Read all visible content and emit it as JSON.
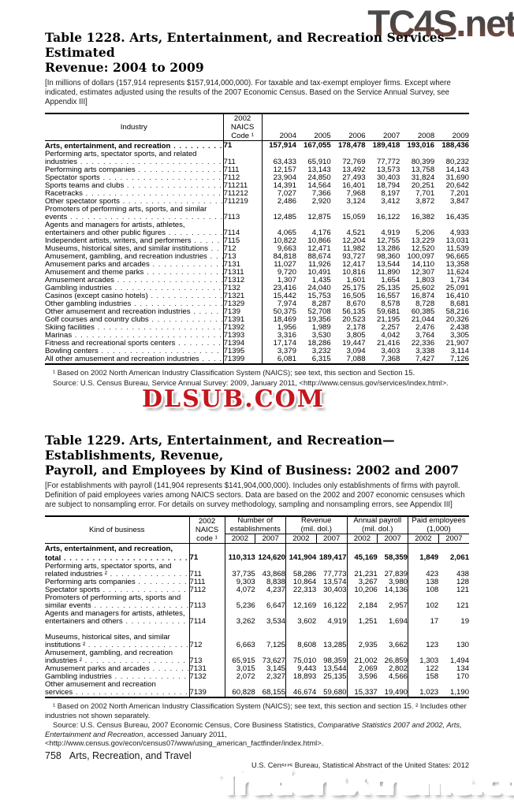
{
  "watermarks": {
    "top_right": "TC4S.net",
    "middle": "DLSUB.COM",
    "bottom": "TradersXtreme.com"
  },
  "table1228": {
    "title_lines": [
      "Table 1228. Arts, Entertainment, and Recreation Services—Estimated",
      "Revenue: 2004 to 2009"
    ],
    "note": "[In millions of dollars (157,914 represents $157,914,000,000). For taxable and tax-exempt employer firms. Except where indicated, estimates adjusted using the results of the 2007 Economic Census. Based on the Service Annual Survey, see Appendix III]",
    "header": {
      "industry": "Industry",
      "naics_lines": [
        "2002",
        "NAICS",
        "Code ¹"
      ],
      "years": [
        "2004",
        "2005",
        "2006",
        "2007",
        "2008",
        "2009"
      ]
    },
    "rows": [
      {
        "t": "Arts, entertainment, and recreation",
        "lv": 1,
        "b": true,
        "n": "71",
        "v": [
          "157,914",
          "167,055",
          "178,478",
          "189,418",
          "193,016",
          "188,436"
        ]
      },
      {
        "t": "Performing arts, spectator sports, and related",
        "lv": 0
      },
      {
        "t": "industries",
        "lv": 1,
        "n": "711",
        "v": [
          "63,433",
          "65,910",
          "72,769",
          "77,772",
          "80,399",
          "80,232"
        ]
      },
      {
        "t": "Performing arts companies",
        "lv": 1,
        "n": "7111",
        "v": [
          "12,157",
          "13,143",
          "13,492",
          "13,573",
          "13,758",
          "14,143"
        ]
      },
      {
        "t": "Spectator sports",
        "lv": 1,
        "n": "7112",
        "v": [
          "23,904",
          "24,850",
          "27,493",
          "30,403",
          "31,824",
          "31,690"
        ]
      },
      {
        "t": "Sports teams and clubs",
        "lv": 2,
        "n": "711211",
        "v": [
          "14,391",
          "14,564",
          "16,401",
          "18,794",
          "20,251",
          "20,642"
        ]
      },
      {
        "t": "Racetracks",
        "lv": 2,
        "n": "711212",
        "v": [
          "7,027",
          "7,366",
          "7,968",
          "8,197",
          "7,701",
          "7,201"
        ]
      },
      {
        "t": "Other spectator sports",
        "lv": 2,
        "n": "711219",
        "v": [
          "2,486",
          "2,920",
          "3,124",
          "3,412",
          "3,872",
          "3,847"
        ]
      },
      {
        "t": "Promoters of performing arts, sports, and similar",
        "lv": 1
      },
      {
        "t": "events",
        "lv": 2,
        "n": "7113",
        "v": [
          "12,485",
          "12,875",
          "15,059",
          "16,122",
          "16,382",
          "16,435"
        ]
      },
      {
        "t": "Agents and managers for artists, athletes,",
        "lv": 1
      },
      {
        "t": "entertainers and other public figures",
        "lv": 2,
        "n": "7114",
        "v": [
          "4,065",
          "4,176",
          "4,521",
          "4,919",
          "5,206",
          "4,933"
        ]
      },
      {
        "t": "Independent artists, writers, and performers",
        "lv": 1,
        "n": "7115",
        "v": [
          "10,822",
          "10,866",
          "12,204",
          "12,755",
          "13,229",
          "13,031"
        ]
      },
      {
        "t": "Museums, historical sites, and similar institutions",
        "lv": 0,
        "n": "712",
        "v": [
          "9,663",
          "12,471",
          "11,982",
          "13,286",
          "12,520",
          "11,539"
        ]
      },
      {
        "t": "Amusement, gambling, and recreation industries",
        "lv": 0,
        "n": "713",
        "v": [
          "84,818",
          "88,674",
          "93,727",
          "98,360",
          "100,097",
          "96,665"
        ]
      },
      {
        "t": "Amusement parks and arcades",
        "lv": 1,
        "n": "7131",
        "v": [
          "11,027",
          "11,926",
          "12,417",
          "13,544",
          "14,110",
          "13,358"
        ]
      },
      {
        "t": "Amusement and theme parks",
        "lv": 2,
        "n": "71311",
        "v": [
          "9,720",
          "10,491",
          "10,816",
          "11,890",
          "12,307",
          "11,624"
        ]
      },
      {
        "t": "Amusement arcades",
        "lv": 2,
        "n": "71312",
        "v": [
          "1,307",
          "1,435",
          "1,601",
          "1,654",
          "1,803",
          "1,734"
        ]
      },
      {
        "t": "Gambling industries",
        "lv": 1,
        "n": "7132",
        "v": [
          "23,416",
          "24,040",
          "25,175",
          "25,135",
          "25,602",
          "25,091"
        ]
      },
      {
        "t": "Casinos (except casino hotels)",
        "lv": 2,
        "n": "71321",
        "v": [
          "15,442",
          "15,753",
          "16,505",
          "16,557",
          "16,874",
          "16,410"
        ]
      },
      {
        "t": "Other gambling industries",
        "lv": 2,
        "n": "71329",
        "v": [
          "7,974",
          "8,287",
          "8,670",
          "8,578",
          "8,728",
          "8,681"
        ]
      },
      {
        "t": "Other amusement and recreation industries",
        "lv": 1,
        "n": "7139",
        "v": [
          "50,375",
          "52,708",
          "56,135",
          "59,681",
          "60,385",
          "58,216"
        ]
      },
      {
        "t": "Golf courses and country clubs",
        "lv": 2,
        "n": "71391",
        "v": [
          "18,469",
          "19,356",
          "20,523",
          "21,195",
          "21,044",
          "20,326"
        ]
      },
      {
        "t": "Skiing facilities",
        "lv": 2,
        "n": "71392",
        "v": [
          "1,956",
          "1,989",
          "2,178",
          "2,257",
          "2,476",
          "2,438"
        ]
      },
      {
        "t": "Marinas",
        "lv": 2,
        "n": "71393",
        "v": [
          "3,316",
          "3,530",
          "3,805",
          "4,042",
          "3,764",
          "3,305"
        ]
      },
      {
        "t": "Fitness and recreational sports centers",
        "lv": 2,
        "n": "71394",
        "v": [
          "17,174",
          "18,286",
          "19,447",
          "21,416",
          "22,336",
          "21,907"
        ]
      },
      {
        "t": "Bowling centers",
        "lv": 2,
        "n": "71395",
        "v": [
          "3,379",
          "3,232",
          "3,094",
          "3,403",
          "3,338",
          "3,114"
        ]
      },
      {
        "t": "All other amusement and recreation industries",
        "lv": 2,
        "n": "71399",
        "v": [
          "6,081",
          "6,315",
          "7,088",
          "7,368",
          "7,427",
          "7,126"
        ]
      }
    ],
    "footnote": "¹ Based on 2002 North American Industry Classification System (NAICS); see text, this section and Section 15.",
    "source": "Source: U.S. Census Bureau, Service Annual Survey: 2009, January 2011, <http://www.census.gov/services/index.html>."
  },
  "table1229": {
    "title_lines": [
      "Table 1229. Arts, Entertainment, and Recreation—Establishments, Revenue,",
      "Payroll, and Employees by Kind of Business: 2002 and 2007"
    ],
    "note": "[For establishments with payroll (141,904 represents $141,904,000,000). Includes only establishments of firms with payroll. Definition of paid employees varies among NAICS sectors. Data are based on the 2002 and 2007 economic censuses which are subject to nonsampling error. For details on survey methodology, sampling and nonsampling errors, see Appendix III]",
    "header": {
      "kind": "Kind of business",
      "naics_lines": [
        "2002",
        "NAICS",
        "code ¹"
      ],
      "groups": [
        [
          "Number of",
          "establishments"
        ],
        [
          "Revenue",
          "(mil. dol.)"
        ],
        [
          "Annual payroll",
          "(mil. dol.)"
        ],
        [
          "Paid employees",
          "(1,000)"
        ]
      ],
      "subyears": [
        "2002",
        "2007",
        "2002",
        "2007",
        "2002",
        "2007",
        "2002",
        "2007"
      ]
    },
    "rows": [
      {
        "t": "Arts, entertainment, and recreation,",
        "lv": 1,
        "b": true
      },
      {
        "t": "total",
        "lv": 2,
        "b": true,
        "n": "71",
        "v": [
          "110,313",
          "124,620",
          "141,904",
          "189,417",
          "45,169",
          "58,359",
          "1,849",
          "2,061"
        ]
      },
      {
        "t": "Performing arts, spectator sports, and",
        "lv": 0
      },
      {
        "t": "related industries ²",
        "lv": 1,
        "n": "711",
        "v": [
          "37,735",
          "43,868",
          "58,286",
          "77,773",
          "21,231",
          "27,839",
          "423",
          "438"
        ]
      },
      {
        "t": "Performing arts companies",
        "lv": 1,
        "n": "7111",
        "v": [
          "9,303",
          "8,838",
          "10,864",
          "13,574",
          "3,267",
          "3,980",
          "138",
          "128"
        ]
      },
      {
        "t": "Spectator sports",
        "lv": 1,
        "n": "7112",
        "v": [
          "4,072",
          "4,237",
          "22,313",
          "30,403",
          "10,206",
          "14,136",
          "108",
          "121"
        ]
      },
      {
        "t": "Promoters of performing arts, sports and",
        "lv": 1
      },
      {
        "t": "similar events",
        "lv": 2,
        "n": "7113",
        "v": [
          "5,236",
          "6,647",
          "12,169",
          "16,122",
          "2,184",
          "2,957",
          "102",
          "121"
        ]
      },
      {
        "t": "Agents and managers for artists, athletes,",
        "lv": 1
      },
      {
        "t": "entertainers and others",
        "lv": 2,
        "n": "7114",
        "v": [
          "3,262",
          "3,534",
          "3,602",
          "4,919",
          "1,251",
          "1,694",
          "17",
          "19"
        ]
      },
      {
        "t": "",
        "lv": 0
      },
      {
        "t": "Museums, historical sites, and similar",
        "lv": 0
      },
      {
        "t": "institutions ²",
        "lv": 1,
        "n": "712",
        "v": [
          "6,663",
          "7,125",
          "8,608",
          "13,285",
          "2,935",
          "3,662",
          "123",
          "130"
        ]
      },
      {
        "t": "Amusement, gambling, and recreation",
        "lv": 0
      },
      {
        "t": "industries ²",
        "lv": 1,
        "n": "713",
        "v": [
          "65,915",
          "73,627",
          "75,010",
          "98,359",
          "21,002",
          "26,859",
          "1,303",
          "1,494"
        ]
      },
      {
        "t": "Amusement parks and arcades",
        "lv": 1,
        "n": "7131",
        "v": [
          "3,015",
          "3,145",
          "9,443",
          "13,544",
          "2,069",
          "2,802",
          "122",
          "134"
        ]
      },
      {
        "t": "Gambling industries",
        "lv": 1,
        "n": "7132",
        "v": [
          "2,072",
          "2,327",
          "18,893",
          "25,135",
          "3,596",
          "4,566",
          "158",
          "170"
        ]
      },
      {
        "t": "Other amusement and recreation",
        "lv": 1
      },
      {
        "t": "services",
        "lv": 2,
        "n": "7139",
        "v": [
          "60,828",
          "68,155",
          "46,674",
          "59,680",
          "15,337",
          "19,490",
          "1,023",
          "1,190"
        ]
      }
    ],
    "footnote": "¹ Based on 2002 North American Industry Classification System (NAICS); see text, this section and section 15. ² Includes other industries not shown separately.",
    "source_prefix": "Source: U.S. Census Bureau, 2007 Economic Census, Core Business Statistics, ",
    "source_italic": "Comparative Statistics 2007 and 2002, Arts, Entertainment and Recreation",
    "source_suffix": ", accessed January 2011, <http://www.census.gov/econ/census07/www/using_american_factfinder/index.html>."
  },
  "footer": {
    "page_number": "758",
    "section": "Arts, Recreation, and Travel",
    "credit": "U.S. Census Bureau, Statistical Abstract of the United States: 2012"
  }
}
